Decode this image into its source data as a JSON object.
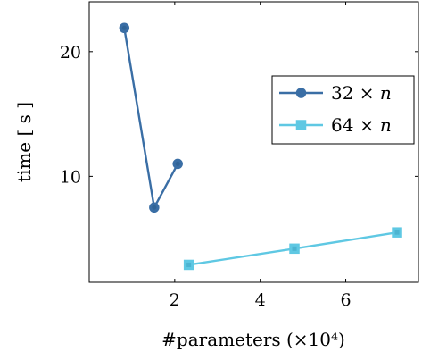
{
  "chart_data": {
    "type": "line",
    "xlabel": "#parameters (×10⁴)",
    "ylabel": "time [ s ]",
    "xlim": [
      0,
      7.7
    ],
    "ylim": [
      1.5,
      24
    ],
    "x_ticks": [
      2,
      4,
      6
    ],
    "y_ticks": [
      10,
      20
    ],
    "grid": false,
    "legend_position": "upper right",
    "series": [
      {
        "name": "32 × n",
        "legend_prefix": "32 × ",
        "legend_var": "n",
        "color": "#3a6ea5",
        "marker": "circle",
        "points": [
          {
            "x": 0.82,
            "y": 21.9
          },
          {
            "x": 1.52,
            "y": 7.5
          },
          {
            "x": 2.07,
            "y": 11.0
          }
        ]
      },
      {
        "name": "64 × n",
        "legend_prefix": "64 × ",
        "legend_var": "n",
        "color": "#5fc8e3",
        "marker": "square",
        "points": [
          {
            "x": 2.33,
            "y": 2.9
          },
          {
            "x": 4.8,
            "y": 4.2
          },
          {
            "x": 7.2,
            "y": 5.5
          }
        ]
      }
    ]
  }
}
